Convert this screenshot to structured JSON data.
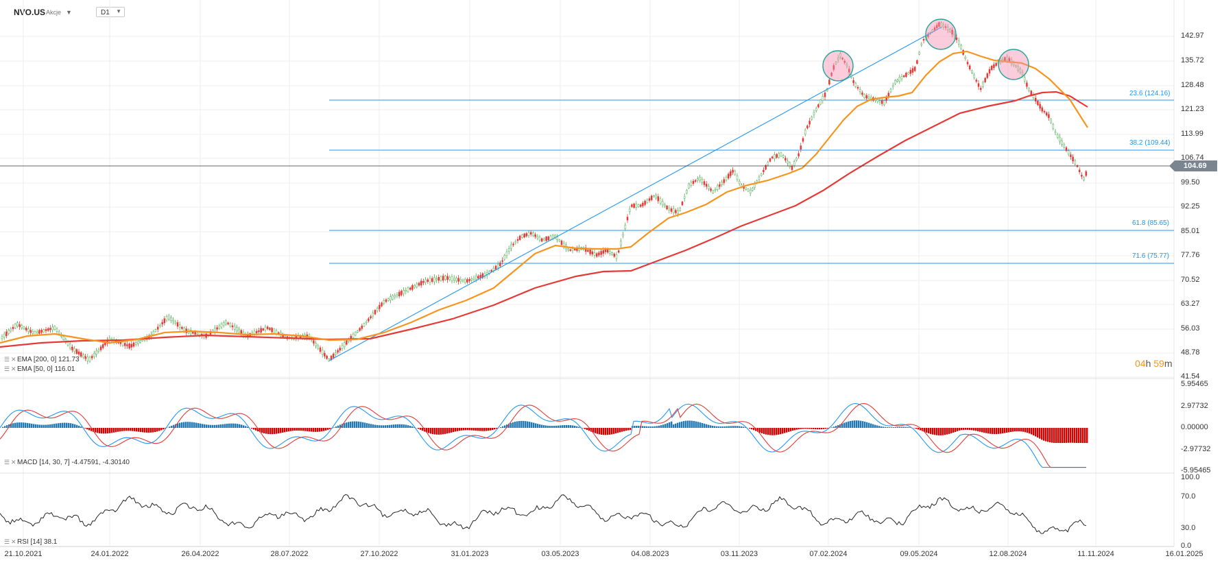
{
  "header": {
    "symbol": "NVO.US",
    "type": "Akcje",
    "timeframe": "D1"
  },
  "price": {
    "current": "104.69"
  },
  "countdown": {
    "hours": "04",
    "hours_unit": "h",
    "minutes": "59",
    "minutes_unit": "m"
  },
  "price_axis": [
    "142.97",
    "135.72",
    "128.48",
    "121.23",
    "113.99",
    "106.74",
    "99.50",
    "92.25",
    "85.01",
    "77.76",
    "70.52",
    "63.27",
    "56.03",
    "48.78",
    "41.54"
  ],
  "macd_axis": [
    "5.95465",
    "2.97732",
    "0.00000",
    "-2.97732",
    "-5.95465"
  ],
  "rsi_axis": [
    "100.0",
    "70.0",
    "30.0",
    "0.0"
  ],
  "date_axis": [
    "21.10.2021",
    "24.01.2022",
    "26.04.2022",
    "28.07.2022",
    "27.10.2022",
    "31.01.2023",
    "03.05.2023",
    "04.08.2023",
    "03.11.2023",
    "07.02.2024",
    "09.05.2024",
    "12.08.2024",
    "11.11.2024",
    "16.01.2025"
  ],
  "fib_levels": [
    "23.6 (124.16)",
    "38.2 (109.44)",
    "61.8 (85.65)",
    "71.6 (75.77)"
  ],
  "indicators": {
    "ema200": "EMA [200, 0] 121.73",
    "ema50": "EMA [50, 0] 116.01",
    "macd": "MACD [14, 30, 7] -4.47591, -4.30140",
    "rsi": "RSI [14] 38.1"
  },
  "colors": {
    "ema200": "#e53935",
    "ema50": "#f7941d",
    "fib": "#2196f3",
    "candle_up": "#4caf50",
    "candle_down": "#e53935",
    "macd_hist_pos": "#1f77b4",
    "macd_hist_neg": "#d50000",
    "macd_line": "#2196f3",
    "signal_line": "#e53935",
    "rsi_line": "#222222"
  },
  "icons": [
    "indicator-settings-icon",
    "remove-indicator-icon",
    "dropdown-caret-icon",
    "highlight-circle"
  ]
}
